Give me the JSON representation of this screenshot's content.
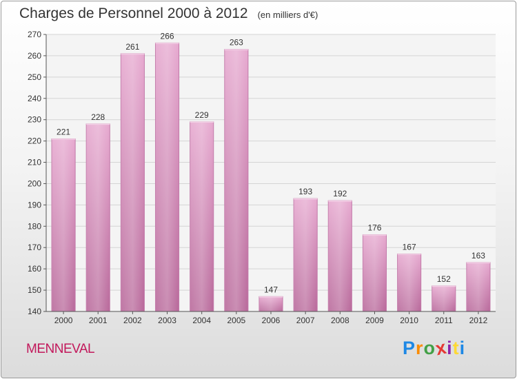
{
  "header": {
    "title": "Charges de Personnel 2000 à 2012",
    "subtitle": "(en milliers d'€)"
  },
  "footer": {
    "town": "MENNEVAL",
    "logo": [
      "P",
      "r",
      "o",
      "x",
      "i",
      "t",
      "i"
    ],
    "logo_colors": [
      "#1e88e5",
      "#fb8c00",
      "#43a047",
      "#e53935",
      "#8e24aa",
      "#fdd835",
      "#1e88e5"
    ]
  },
  "chart_data": {
    "type": "bar",
    "categories": [
      "2000",
      "2001",
      "2002",
      "2003",
      "2004",
      "2005",
      "2006",
      "2007",
      "2008",
      "2009",
      "2010",
      "2011",
      "2012"
    ],
    "values": [
      221,
      228,
      261,
      266,
      229,
      263,
      147,
      193,
      192,
      176,
      167,
      152,
      163
    ],
    "title": "Charges de Personnel 2000 à 2012",
    "subtitle": "(en milliers d'€)",
    "xlabel": "",
    "ylabel": "",
    "ylim": [
      140,
      270
    ],
    "yticks": [
      140,
      150,
      160,
      170,
      180,
      190,
      200,
      210,
      220,
      230,
      240,
      250,
      260,
      270
    ],
    "grid": true,
    "bar_color": "#d987b8"
  }
}
